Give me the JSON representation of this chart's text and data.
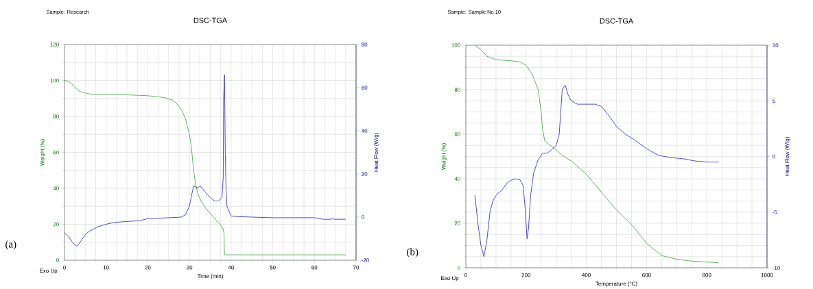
{
  "chart_data": [
    {
      "type": "line",
      "title": "DSC-TGA",
      "xlabel": "Time (min)",
      "ylabel": "Weight (%)",
      "y2label": "Heat Flow (W/g)",
      "annotations": [
        "Sample: Research",
        "(a)",
        "Exo Up"
      ],
      "grid": true,
      "xlim": [
        0,
        70
      ],
      "xticks": [
        0,
        10,
        20,
        30,
        40,
        50,
        60,
        70
      ],
      "ylim": [
        0,
        120
      ],
      "yticks": [
        0,
        20,
        40,
        60,
        80,
        100,
        120
      ],
      "y2lim": [
        -20,
        80
      ],
      "y2ticks": [
        -20,
        0,
        20,
        40,
        60,
        80
      ],
      "series": [
        {
          "color": "#3a9a3a",
          "x": [
            0,
            1,
            2,
            3,
            4,
            6,
            8,
            15,
            20,
            24,
            26,
            27,
            28,
            29,
            30,
            30.5,
            31,
            31.5,
            32,
            33,
            34,
            35,
            36,
            37,
            38,
            38.3,
            38.4,
            67.5
          ],
          "values": [
            100,
            99.5,
            97.5,
            95,
            93.5,
            92.5,
            92,
            92,
            91.5,
            90.5,
            89,
            87,
            84,
            79,
            70,
            62,
            50,
            42,
            37,
            32,
            28.5,
            26,
            23.5,
            21,
            18,
            15,
            3,
            3
          ]
        },
        {
          "color": "#1f1fbf",
          "axis": "y2",
          "x": [
            0,
            1,
            2,
            3,
            4,
            5,
            6,
            8,
            10,
            12,
            15,
            18,
            20,
            25,
            28,
            29,
            30,
            30.5,
            31,
            31.5,
            32,
            32.5,
            33,
            34,
            35,
            36,
            37,
            37.8,
            38.1,
            38.2,
            38.3,
            38.4,
            38.5,
            38.6,
            38.8,
            39,
            40,
            42,
            45,
            50,
            60,
            62,
            64,
            64.3,
            64.7,
            67.5
          ],
          "values": [
            -7.3,
            -9,
            -12,
            -13.5,
            -11,
            -8,
            -6.5,
            -4.5,
            -3.3,
            -2.5,
            -2,
            -1.7,
            -0.7,
            -0.3,
            0,
            1,
            5,
            10,
            14.5,
            14,
            13.5,
            14.5,
            13.5,
            11,
            9,
            7.5,
            7.5,
            9,
            18,
            55,
            60,
            66,
            50,
            30,
            12,
            5,
            0.5,
            0.2,
            0,
            -0.3,
            -0.3,
            -1,
            -1,
            -0.6,
            -1,
            -1
          ]
        }
      ]
    },
    {
      "type": "line",
      "title": "DSC-TGA",
      "xlabel": "Temperature (°C)",
      "ylabel": "Weight (%)",
      "y2label": "Heat Flow (W/g)",
      "annotations": [
        "Sample: Sample No 10",
        "(b)",
        "Exo Up"
      ],
      "grid": true,
      "xlim": [
        0,
        1000
      ],
      "xticks": [
        0,
        200,
        400,
        600,
        800,
        1000
      ],
      "ylim": [
        0,
        100
      ],
      "yticks": [
        0,
        20,
        40,
        60,
        80,
        100
      ],
      "y2lim": [
        -10,
        10
      ],
      "y2ticks": [
        -10,
        -5,
        0,
        5,
        10
      ],
      "series": [
        {
          "color": "#3a9a3a",
          "x": [
            30,
            50,
            70,
            100,
            150,
            180,
            200,
            220,
            240,
            250,
            255,
            262,
            280,
            300,
            320,
            350,
            400,
            450,
            500,
            550,
            600,
            650,
            700,
            750,
            800,
            840
          ],
          "values": [
            100,
            98,
            95,
            93.5,
            93,
            92.5,
            91,
            87,
            80,
            70,
            62,
            57,
            55,
            53,
            50.5,
            48,
            42,
            34,
            26,
            19.5,
            11,
            5.5,
            3.8,
            3,
            2.6,
            2.2
          ]
        },
        {
          "color": "#1f1fbf",
          "axis": "y2",
          "x": [
            30,
            40,
            50,
            60,
            70,
            80,
            90,
            100,
            120,
            140,
            160,
            180,
            190,
            198,
            203,
            208,
            215,
            225,
            240,
            255,
            270,
            285,
            300,
            310,
            315,
            320,
            330,
            340,
            350,
            370,
            400,
            430,
            450,
            480,
            500,
            530,
            560,
            600,
            640,
            680,
            720,
            760,
            800,
            840
          ],
          "values": [
            -3.5,
            -6,
            -8,
            -9,
            -7.5,
            -5,
            -4,
            -3.5,
            -3,
            -2.3,
            -2,
            -2.1,
            -2.6,
            -5,
            -7.4,
            -6.5,
            -3.5,
            -1.5,
            -0.3,
            0.3,
            0.3,
            0.6,
            1,
            2,
            4,
            6,
            6.4,
            5.5,
            5,
            4.7,
            4.7,
            4.7,
            4.5,
            3.5,
            2.7,
            2,
            1.5,
            0.7,
            0.1,
            -0.1,
            -0.2,
            -0.4,
            -0.5,
            -0.5
          ]
        }
      ]
    }
  ]
}
